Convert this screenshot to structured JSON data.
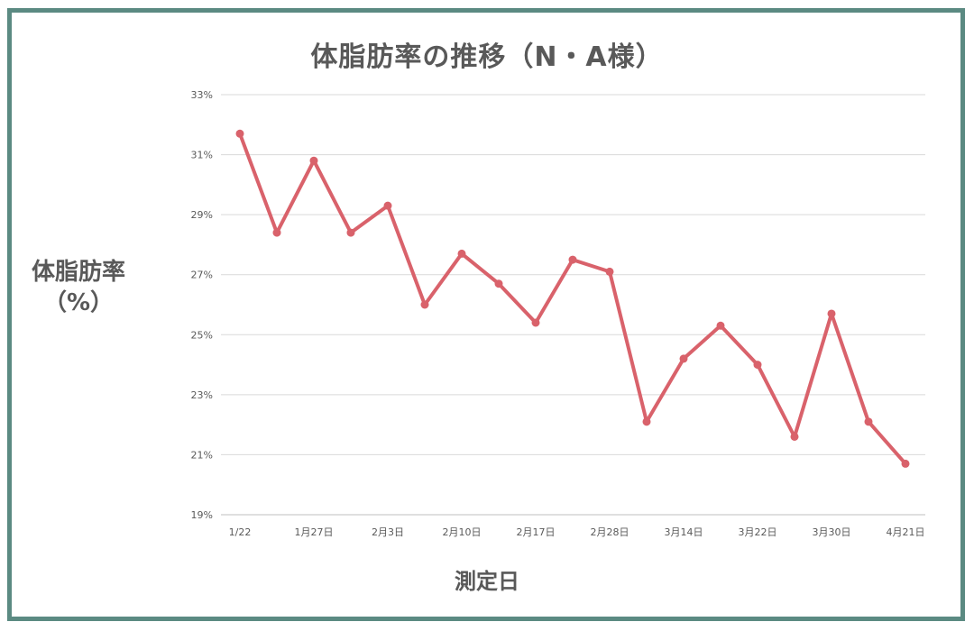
{
  "chart_data": {
    "type": "line",
    "title": "体脂肪率の推移（N・A様）",
    "ylabel_line1": "体脂肪率",
    "ylabel_line2": "（%）",
    "xlabel": "測定日",
    "ylim": [
      19,
      33
    ],
    "yticks": [
      "33%",
      "31%",
      "29%",
      "27%",
      "25%",
      "23%",
      "21%",
      "19%"
    ],
    "ytick_values": [
      33,
      31,
      29,
      27,
      25,
      23,
      21,
      19
    ],
    "x_labels": [
      "1/22",
      "",
      "1月27日",
      "",
      "2月3日",
      "",
      "2月10日",
      "",
      "2月17日",
      "",
      "2月28日",
      "",
      "3月14日",
      "",
      "3月22日",
      "",
      "3月30日",
      "",
      "4月21日"
    ],
    "series": [
      {
        "values": [
          31.7,
          28.4,
          30.8,
          28.4,
          29.3,
          26.0,
          27.7,
          26.7,
          25.4,
          27.5,
          27.1,
          22.1,
          24.2,
          25.3,
          24.0,
          21.6,
          25.7,
          22.1,
          20.7
        ]
      }
    ],
    "grid": true,
    "line_color": "#d9626b"
  }
}
